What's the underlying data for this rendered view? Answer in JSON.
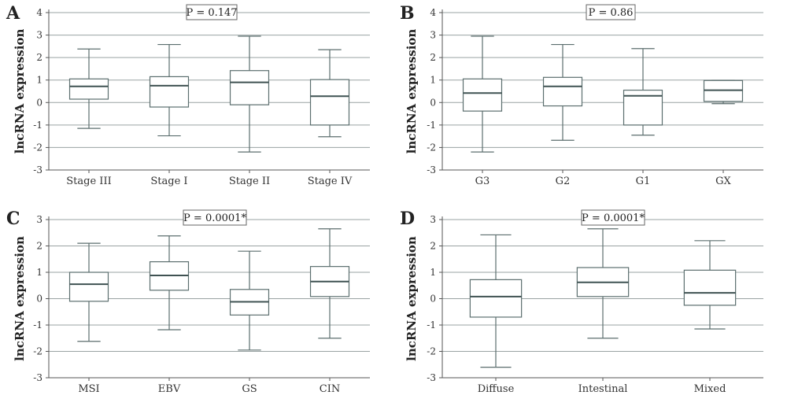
{
  "chart_data": [
    {
      "panel": "A",
      "type": "box",
      "ylabel": "lncRNA expression",
      "annotation": "P = 0.147",
      "ylim": [
        -3,
        4
      ],
      "yticks": [
        -3,
        -2,
        -1,
        0,
        1,
        2,
        3,
        4
      ],
      "grid": true,
      "categories": [
        "Stage III",
        "Stage I",
        "Stage II",
        "Stage IV"
      ],
      "boxes": [
        {
          "min": -1.15,
          "q1": 0.15,
          "median": 0.72,
          "q3": 1.05,
          "max": 2.38
        },
        {
          "min": -1.48,
          "q1": -0.2,
          "median": 0.75,
          "q3": 1.15,
          "max": 2.58
        },
        {
          "min": -2.2,
          "q1": -0.1,
          "median": 0.9,
          "q3": 1.42,
          "max": 2.95
        },
        {
          "min": -1.52,
          "q1": -1.0,
          "median": 0.28,
          "q3": 1.02,
          "max": 2.35
        }
      ]
    },
    {
      "panel": "B",
      "type": "box",
      "ylabel": "lncRNA expression",
      "annotation": "P = 0.86",
      "ylim": [
        -3,
        4
      ],
      "yticks": [
        -3,
        -2,
        -1,
        0,
        1,
        2,
        3,
        4
      ],
      "grid": true,
      "categories": [
        "G3",
        "G2",
        "G1",
        "GX"
      ],
      "boxes": [
        {
          "min": -2.2,
          "q1": -0.38,
          "median": 0.42,
          "q3": 1.05,
          "max": 2.95
        },
        {
          "min": -1.68,
          "q1": -0.15,
          "median": 0.72,
          "q3": 1.12,
          "max": 2.58
        },
        {
          "min": -1.45,
          "q1": -1.0,
          "median": 0.3,
          "q3": 0.55,
          "max": 2.4
        },
        {
          "min": -0.05,
          "q1": 0.05,
          "median": 0.55,
          "q3": 0.98,
          "max": 0.98
        }
      ]
    },
    {
      "panel": "C",
      "type": "box",
      "ylabel": "lncRNA expression",
      "annotation": "P = 0.0001*",
      "ylim": [
        -3,
        3
      ],
      "yticks": [
        -3,
        -2,
        -1,
        0,
        1,
        2,
        3
      ],
      "grid": true,
      "categories": [
        "MSI",
        "EBV",
        "GS",
        "CIN"
      ],
      "boxes": [
        {
          "min": -1.62,
          "q1": -0.1,
          "median": 0.55,
          "q3": 1.0,
          "max": 2.1
        },
        {
          "min": -1.18,
          "q1": 0.32,
          "median": 0.88,
          "q3": 1.4,
          "max": 2.38
        },
        {
          "min": -1.95,
          "q1": -0.62,
          "median": -0.12,
          "q3": 0.35,
          "max": 1.8
        },
        {
          "min": -1.5,
          "q1": 0.08,
          "median": 0.65,
          "q3": 1.22,
          "max": 2.65
        }
      ]
    },
    {
      "panel": "D",
      "type": "box",
      "ylabel": "lncRNA expression",
      "annotation": "P = 0.0001*",
      "ylim": [
        -3,
        3
      ],
      "yticks": [
        -3,
        -2,
        -1,
        0,
        1,
        2,
        3
      ],
      "grid": true,
      "categories": [
        "Diffuse",
        "Intestinal",
        "Mixed"
      ],
      "boxes": [
        {
          "min": -2.6,
          "q1": -0.7,
          "median": 0.08,
          "q3": 0.72,
          "max": 2.42
        },
        {
          "min": -1.5,
          "q1": 0.08,
          "median": 0.62,
          "q3": 1.18,
          "max": 2.65
        },
        {
          "min": -1.15,
          "q1": -0.25,
          "median": 0.22,
          "q3": 1.08,
          "max": 2.2
        }
      ]
    }
  ]
}
